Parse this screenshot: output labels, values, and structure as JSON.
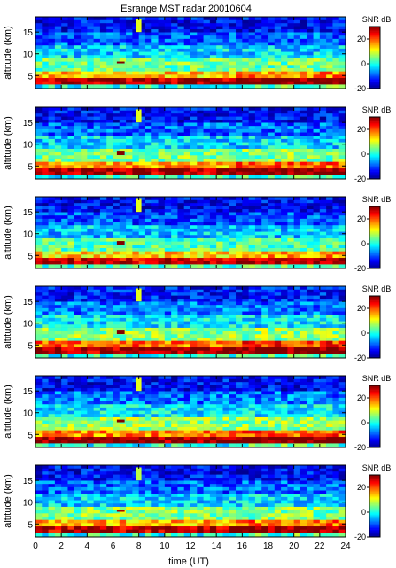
{
  "figure": {
    "title": "Esrange MST radar 20010604",
    "xlabel": "time (UT)",
    "x_ticks": [
      "0",
      "2",
      "4",
      "6",
      "8",
      "10",
      "12",
      "14",
      "16",
      "18",
      "20",
      "22",
      "24"
    ],
    "ylabel": "altitude (km)",
    "y_ticks": [
      "5",
      "10",
      "15"
    ],
    "colorbar_label": "SNR dB",
    "colorbar_ticks": [
      "-20",
      "0",
      "20"
    ],
    "colormap": [
      "#00008f",
      "#0000ff",
      "#0080ff",
      "#00ffff",
      "#80ff80",
      "#ffff00",
      "#ff8000",
      "#ff0000",
      "#800000"
    ]
  },
  "chart_data": [
    {
      "type": "heatmap",
      "panel": 1,
      "series": "Esrange MST radar 20010604",
      "x_range": [
        0,
        24
      ],
      "x_unit": "time (UT)",
      "y_range": [
        2,
        18.5
      ],
      "y_unit": "altitude (km)",
      "z_range": [
        -20,
        30
      ],
      "z_unit": "SNR dB",
      "layers": [
        {
          "altitude_km": [
            2.0,
            3.0
          ],
          "snr_db": 0
        },
        {
          "altitude_km": [
            3.0,
            4.5
          ],
          "snr_db": 28
        },
        {
          "altitude_km": [
            4.5,
            6.0
          ],
          "snr_db": 14
        },
        {
          "altitude_km": [
            6.0,
            9.0
          ],
          "snr_db": 4
        },
        {
          "altitude_km": [
            9.0,
            12.0
          ],
          "snr_db": -3
        },
        {
          "altitude_km": [
            12.0,
            15.0
          ],
          "snr_db": -9
        },
        {
          "altitude_km": [
            15.0,
            18.5
          ],
          "snr_db": -14
        }
      ],
      "features": [
        {
          "time_ut": [
            7.8,
            8.2
          ],
          "altitude_km": [
            15.0,
            18.0
          ],
          "snr_db": 10
        },
        {
          "time_ut": [
            6.3,
            6.9
          ],
          "altitude_km": [
            7.8,
            8.2
          ],
          "snr_db": 30
        }
      ]
    },
    {
      "type": "heatmap",
      "panel": 2,
      "x_range": [
        0,
        24
      ],
      "y_range": [
        2,
        18.5
      ],
      "z_range": [
        -20,
        30
      ],
      "layers": [
        {
          "altitude_km": [
            2.0,
            3.0
          ],
          "snr_db": 0
        },
        {
          "altitude_km": [
            3.0,
            4.5
          ],
          "snr_db": 28
        },
        {
          "altitude_km": [
            4.5,
            6.0
          ],
          "snr_db": 16
        },
        {
          "altitude_km": [
            6.0,
            9.0
          ],
          "snr_db": 5
        },
        {
          "altitude_km": [
            9.0,
            12.0
          ],
          "snr_db": -3
        },
        {
          "altitude_km": [
            12.0,
            15.0
          ],
          "snr_db": -9
        },
        {
          "altitude_km": [
            15.0,
            18.5
          ],
          "snr_db": -14
        }
      ],
      "features": [
        {
          "time_ut": [
            7.8,
            8.2
          ],
          "altitude_km": [
            15.0,
            18.0
          ],
          "snr_db": 10
        },
        {
          "time_ut": [
            6.3,
            6.9
          ],
          "altitude_km": [
            7.5,
            8.5
          ],
          "snr_db": 30
        }
      ]
    },
    {
      "type": "heatmap",
      "panel": 3,
      "x_range": [
        0,
        24
      ],
      "y_range": [
        2,
        18.5
      ],
      "z_range": [
        -20,
        30
      ],
      "layers": [
        {
          "altitude_km": [
            2.0,
            3.0
          ],
          "snr_db": 2
        },
        {
          "altitude_km": [
            3.0,
            4.5
          ],
          "snr_db": 25
        },
        {
          "altitude_km": [
            4.5,
            6.0
          ],
          "snr_db": 13
        },
        {
          "altitude_km": [
            6.0,
            9.0
          ],
          "snr_db": 3
        },
        {
          "altitude_km": [
            9.0,
            12.0
          ],
          "snr_db": -4
        },
        {
          "altitude_km": [
            12.0,
            15.0
          ],
          "snr_db": -10
        },
        {
          "altitude_km": [
            15.0,
            18.5
          ],
          "snr_db": -14
        }
      ],
      "features": [
        {
          "time_ut": [
            7.8,
            8.2
          ],
          "altitude_km": [
            15.0,
            18.0
          ],
          "snr_db": 10
        },
        {
          "time_ut": [
            6.3,
            6.9
          ],
          "altitude_km": [
            7.5,
            8.3
          ],
          "snr_db": 30
        }
      ]
    },
    {
      "type": "heatmap",
      "panel": 4,
      "x_range": [
        0,
        24
      ],
      "y_range": [
        2,
        18.5
      ],
      "z_range": [
        -20,
        30
      ],
      "layers": [
        {
          "altitude_km": [
            2.0,
            3.0
          ],
          "snr_db": 0
        },
        {
          "altitude_km": [
            3.0,
            4.5
          ],
          "snr_db": 28
        },
        {
          "altitude_km": [
            4.5,
            6.0
          ],
          "snr_db": 18
        },
        {
          "altitude_km": [
            6.0,
            9.0
          ],
          "snr_db": 6
        },
        {
          "altitude_km": [
            9.0,
            12.0
          ],
          "snr_db": -2
        },
        {
          "altitude_km": [
            12.0,
            15.0
          ],
          "snr_db": -8
        },
        {
          "altitude_km": [
            15.0,
            18.5
          ],
          "snr_db": -13
        }
      ],
      "features": [
        {
          "time_ut": [
            7.8,
            8.2
          ],
          "altitude_km": [
            15.0,
            18.0
          ],
          "snr_db": 10
        },
        {
          "time_ut": [
            6.3,
            6.9
          ],
          "altitude_km": [
            7.5,
            8.5
          ],
          "snr_db": 30
        }
      ]
    },
    {
      "type": "heatmap",
      "panel": 5,
      "x_range": [
        0,
        24
      ],
      "y_range": [
        2,
        18.5
      ],
      "z_range": [
        -20,
        30
      ],
      "layers": [
        {
          "altitude_km": [
            2.0,
            3.0
          ],
          "snr_db": 0
        },
        {
          "altitude_km": [
            3.0,
            4.5
          ],
          "snr_db": 29
        },
        {
          "altitude_km": [
            4.5,
            6.0
          ],
          "snr_db": 17
        },
        {
          "altitude_km": [
            6.0,
            9.0
          ],
          "snr_db": 6
        },
        {
          "altitude_km": [
            9.0,
            12.0
          ],
          "snr_db": -2
        },
        {
          "altitude_km": [
            12.0,
            15.0
          ],
          "snr_db": -8
        },
        {
          "altitude_km": [
            15.0,
            18.5
          ],
          "snr_db": -14
        }
      ],
      "features": [
        {
          "time_ut": [
            7.8,
            8.2
          ],
          "altitude_km": [
            15.0,
            18.0
          ],
          "snr_db": 10
        },
        {
          "time_ut": [
            6.3,
            6.9
          ],
          "altitude_km": [
            7.8,
            8.4
          ],
          "snr_db": 30
        }
      ]
    },
    {
      "type": "heatmap",
      "panel": 6,
      "x_range": [
        0,
        24
      ],
      "y_range": [
        2,
        18.5
      ],
      "z_range": [
        -20,
        30
      ],
      "layers": [
        {
          "altitude_km": [
            2.0,
            3.0
          ],
          "snr_db": 0
        },
        {
          "altitude_km": [
            3.0,
            4.5
          ],
          "snr_db": 27
        },
        {
          "altitude_km": [
            4.5,
            6.0
          ],
          "snr_db": 15
        },
        {
          "altitude_km": [
            6.0,
            9.0
          ],
          "snr_db": 5
        },
        {
          "altitude_km": [
            9.0,
            12.0
          ],
          "snr_db": -3
        },
        {
          "altitude_km": [
            12.0,
            15.0
          ],
          "snr_db": -9
        },
        {
          "altitude_km": [
            15.0,
            18.5
          ],
          "snr_db": -14
        }
      ],
      "features": [
        {
          "time_ut": [
            7.8,
            8.2
          ],
          "altitude_km": [
            15.0,
            18.0
          ],
          "snr_db": 8
        },
        {
          "time_ut": [
            6.3,
            6.9
          ],
          "altitude_km": [
            7.8,
            8.2
          ],
          "snr_db": 28
        }
      ]
    }
  ]
}
